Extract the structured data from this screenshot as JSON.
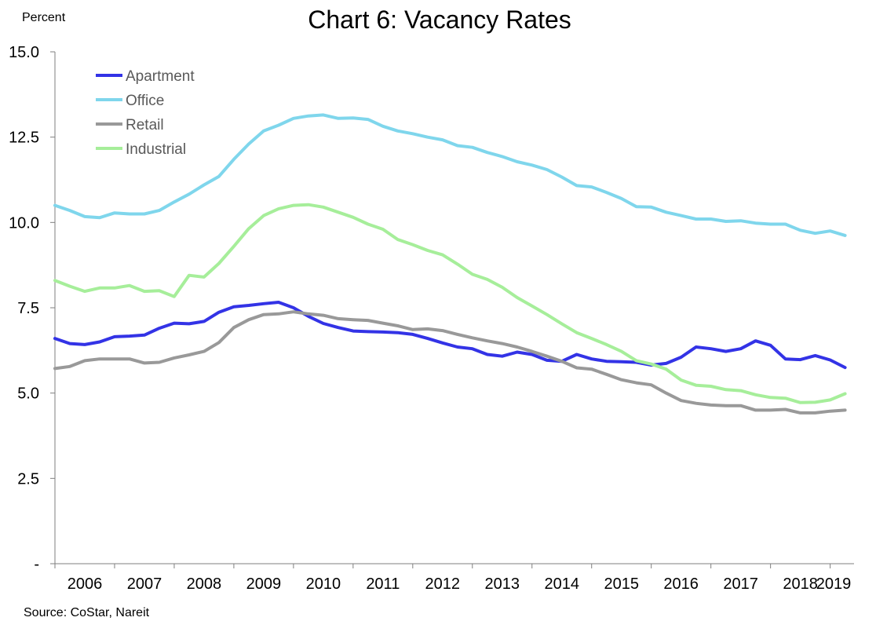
{
  "chart_data": {
    "type": "line",
    "title": "Chart 6: Vacancy Rates",
    "y_unit": "Percent",
    "source": "Source: CoStar, Nareit",
    "xlim": [
      2006,
      2019.4
    ],
    "ylim": [
      0,
      15
    ],
    "y_ticks": [
      {
        "value": 0,
        "label": "-"
      },
      {
        "value": 2.5,
        "label": "2.5"
      },
      {
        "value": 5,
        "label": "5.0"
      },
      {
        "value": 7.5,
        "label": "7.5"
      },
      {
        "value": 10,
        "label": "10.0"
      },
      {
        "value": 12.5,
        "label": "12.5"
      },
      {
        "value": 15,
        "label": "15.0"
      }
    ],
    "x_ticks": [
      "2006",
      "2007",
      "2008",
      "2009",
      "2010",
      "2011",
      "2012",
      "2013",
      "2014",
      "2015",
      "2016",
      "2017",
      "2018",
      "2019"
    ],
    "grid": false,
    "legend_position": "top-left",
    "series": [
      {
        "name": "Apartment",
        "color": "#3333e6",
        "x": [
          2006.0,
          2006.25,
          2006.5,
          2006.75,
          2007.0,
          2007.25,
          2007.5,
          2007.75,
          2008.0,
          2008.25,
          2008.5,
          2008.75,
          2009.0,
          2009.25,
          2009.5,
          2009.75,
          2010.0,
          2010.25,
          2010.5,
          2010.75,
          2011.0,
          2011.25,
          2011.5,
          2011.75,
          2012.0,
          2012.25,
          2012.5,
          2012.75,
          2013.0,
          2013.25,
          2013.5,
          2013.75,
          2014.0,
          2014.25,
          2014.5,
          2014.75,
          2015.0,
          2015.25,
          2015.5,
          2015.75,
          2016.0,
          2016.25,
          2016.5,
          2016.75,
          2017.0,
          2017.25,
          2017.5,
          2017.75,
          2018.0,
          2018.25,
          2018.5,
          2018.75,
          2019.0,
          2019.25
        ],
        "values": [
          6.6,
          6.45,
          6.42,
          6.5,
          6.65,
          6.67,
          6.7,
          6.9,
          7.05,
          7.03,
          7.1,
          7.37,
          7.53,
          7.57,
          7.62,
          7.66,
          7.5,
          7.25,
          7.04,
          6.92,
          6.82,
          6.8,
          6.79,
          6.77,
          6.72,
          6.6,
          6.47,
          6.35,
          6.3,
          6.13,
          6.08,
          6.2,
          6.13,
          5.96,
          5.93,
          6.13,
          6.0,
          5.93,
          5.92,
          5.9,
          5.82,
          5.87,
          6.05,
          6.35,
          6.3,
          6.22,
          6.3,
          6.53,
          6.4,
          6.0,
          5.98,
          6.1,
          5.97,
          5.75
        ]
      },
      {
        "name": "Office",
        "color": "#7fd6ec",
        "x": [
          2006.0,
          2006.25,
          2006.5,
          2006.75,
          2007.0,
          2007.25,
          2007.5,
          2007.75,
          2008.0,
          2008.25,
          2008.5,
          2008.75,
          2009.0,
          2009.25,
          2009.5,
          2009.75,
          2010.0,
          2010.25,
          2010.5,
          2010.75,
          2011.0,
          2011.25,
          2011.5,
          2011.75,
          2012.0,
          2012.25,
          2012.5,
          2012.75,
          2013.0,
          2013.25,
          2013.5,
          2013.75,
          2014.0,
          2014.25,
          2014.5,
          2014.75,
          2015.0,
          2015.25,
          2015.5,
          2015.75,
          2016.0,
          2016.25,
          2016.5,
          2016.75,
          2017.0,
          2017.25,
          2017.5,
          2017.75,
          2018.0,
          2018.25,
          2018.5,
          2018.75,
          2019.0,
          2019.25
        ],
        "values": [
          10.5,
          10.35,
          10.17,
          10.14,
          10.28,
          10.25,
          10.25,
          10.35,
          10.6,
          10.83,
          11.1,
          11.35,
          11.85,
          12.3,
          12.68,
          12.85,
          13.05,
          13.12,
          13.15,
          13.05,
          13.06,
          13.02,
          12.82,
          12.68,
          12.6,
          12.5,
          12.42,
          12.25,
          12.2,
          12.05,
          11.93,
          11.78,
          11.68,
          11.55,
          11.33,
          11.08,
          11.04,
          10.88,
          10.7,
          10.46,
          10.45,
          10.3,
          10.2,
          10.1,
          10.1,
          10.03,
          10.05,
          9.98,
          9.95,
          9.95,
          9.77,
          9.68,
          9.75,
          9.62
        ]
      },
      {
        "name": "Retail",
        "color": "#999999",
        "x": [
          2006.0,
          2006.25,
          2006.5,
          2006.75,
          2007.0,
          2007.25,
          2007.5,
          2007.75,
          2008.0,
          2008.25,
          2008.5,
          2008.75,
          2009.0,
          2009.25,
          2009.5,
          2009.75,
          2010.0,
          2010.25,
          2010.5,
          2010.75,
          2011.0,
          2011.25,
          2011.5,
          2011.75,
          2012.0,
          2012.25,
          2012.5,
          2012.75,
          2013.0,
          2013.25,
          2013.5,
          2013.75,
          2014.0,
          2014.25,
          2014.5,
          2014.75,
          2015.0,
          2015.25,
          2015.5,
          2015.75,
          2016.0,
          2016.25,
          2016.5,
          2016.75,
          2017.0,
          2017.25,
          2017.5,
          2017.75,
          2018.0,
          2018.25,
          2018.5,
          2018.75,
          2019.0,
          2019.25
        ],
        "values": [
          5.72,
          5.78,
          5.95,
          6.0,
          6.0,
          6.0,
          5.88,
          5.9,
          6.03,
          6.12,
          6.22,
          6.48,
          6.92,
          7.15,
          7.3,
          7.32,
          7.38,
          7.32,
          7.28,
          7.18,
          7.15,
          7.13,
          7.05,
          6.97,
          6.86,
          6.88,
          6.83,
          6.72,
          6.62,
          6.53,
          6.45,
          6.35,
          6.22,
          6.08,
          5.93,
          5.74,
          5.7,
          5.55,
          5.39,
          5.3,
          5.24,
          5.0,
          4.78,
          4.7,
          4.65,
          4.63,
          4.63,
          4.5,
          4.5,
          4.52,
          4.42,
          4.42,
          4.47,
          4.5
        ]
      },
      {
        "name": "Industrial",
        "color": "#a6ee9a",
        "x": [
          2006.0,
          2006.25,
          2006.5,
          2006.75,
          2007.0,
          2007.25,
          2007.5,
          2007.75,
          2008.0,
          2008.25,
          2008.5,
          2008.75,
          2009.0,
          2009.25,
          2009.5,
          2009.75,
          2010.0,
          2010.25,
          2010.5,
          2010.75,
          2011.0,
          2011.25,
          2011.5,
          2011.75,
          2012.0,
          2012.25,
          2012.5,
          2012.75,
          2013.0,
          2013.25,
          2013.5,
          2013.75,
          2014.0,
          2014.25,
          2014.5,
          2014.75,
          2015.0,
          2015.25,
          2015.5,
          2015.75,
          2016.0,
          2016.25,
          2016.5,
          2016.75,
          2017.0,
          2017.25,
          2017.5,
          2017.75,
          2018.0,
          2018.25,
          2018.5,
          2018.75,
          2019.0,
          2019.25
        ],
        "values": [
          8.3,
          8.13,
          7.98,
          8.08,
          8.08,
          8.15,
          7.98,
          8.0,
          7.83,
          8.45,
          8.4,
          8.8,
          9.3,
          9.82,
          10.2,
          10.4,
          10.5,
          10.52,
          10.45,
          10.3,
          10.15,
          9.95,
          9.8,
          9.5,
          9.35,
          9.18,
          9.05,
          8.78,
          8.48,
          8.33,
          8.1,
          7.8,
          7.55,
          7.3,
          7.03,
          6.77,
          6.6,
          6.42,
          6.22,
          5.95,
          5.85,
          5.7,
          5.38,
          5.23,
          5.2,
          5.1,
          5.07,
          4.95,
          4.87,
          4.85,
          4.72,
          4.73,
          4.8,
          4.98
        ]
      }
    ]
  }
}
